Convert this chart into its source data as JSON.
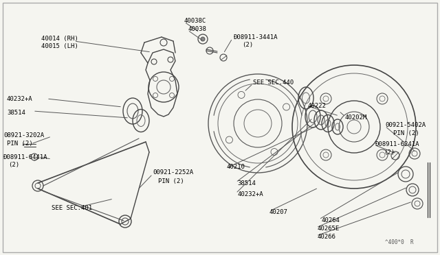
{
  "bg_color": "#f5f5f0",
  "line_color": "#555555",
  "text_color": "#000000",
  "fig_w": 6.4,
  "fig_h": 3.72,
  "dpi": 100,
  "xlim": [
    0,
    640
  ],
  "ylim": [
    0,
    372
  ]
}
